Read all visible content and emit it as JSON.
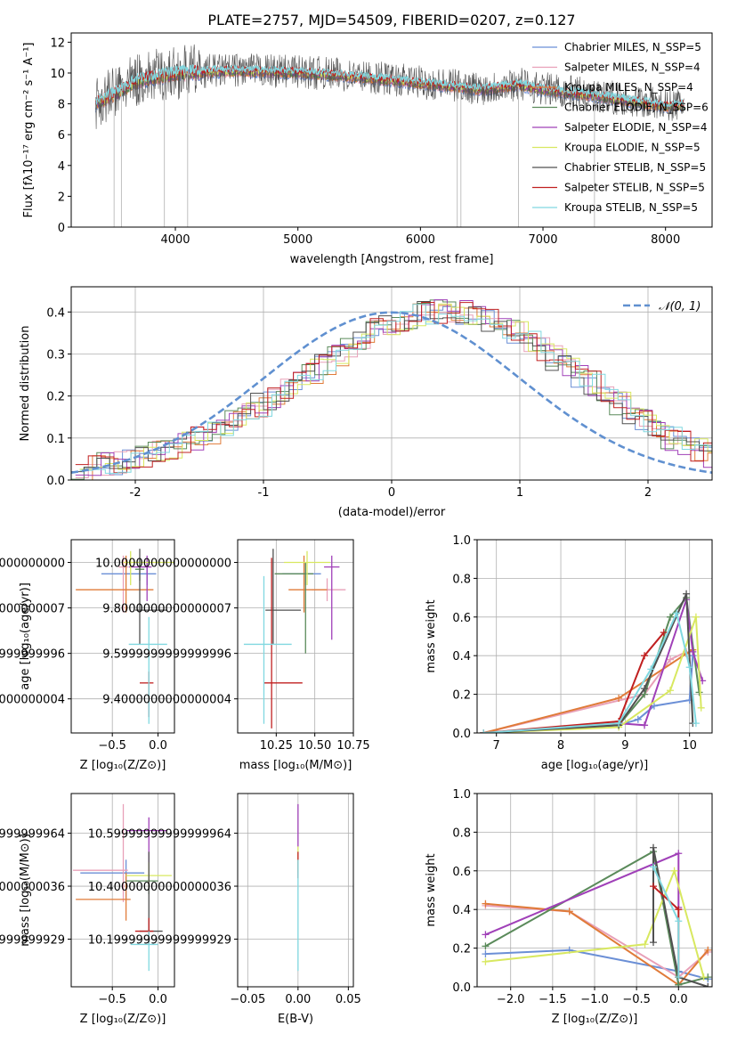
{
  "title": "PLATE=2757, MJD=54509, FIBERID=0207, z=0.127",
  "colors": {
    "Chabrier MILES": "#6b8fd6",
    "Salpeter MILES": "#e8a0b8",
    "Kroupa MILES": "#e07b39",
    "Chabrier ELODIE": "#5a8a5a",
    "Salpeter ELODIE": "#a040b8",
    "Kroupa ELODIE": "#d8e860",
    "Chabrier STELIB": "#505050",
    "Salpeter STELIB": "#c02020",
    "Kroupa STELIB": "#80d8e0",
    "normal": "#6090d0"
  },
  "chart_data": [
    {
      "type": "line",
      "id": "spectrum",
      "xlabel": "wavelength [Angstrom, rest frame]",
      "ylabel": "Flux [fλ10⁻¹⁷ erg cm⁻² s⁻¹ A⁻¹]",
      "xlim": [
        3150,
        8380
      ],
      "ylim": [
        0,
        12.6
      ],
      "xticks": [
        4000,
        5000,
        6000,
        7000,
        8000
      ],
      "yticks": [
        0,
        2,
        4,
        6,
        8,
        10,
        12
      ],
      "legend_position": "top-right",
      "legend": [
        "Chabrier MILES, N_SSP=5",
        "Salpeter MILES, N_SSP=4",
        "Kroupa MILES, N_SSP=4",
        "Chabrier ELODIE, N_SSP=6",
        "Salpeter ELODIE, N_SSP=4",
        "Kroupa ELODIE, N_SSP=5",
        "Chabrier STELIB, N_SSP=5",
        "Salpeter STELIB, N_SSP=5",
        "Kroupa STELIB, N_SSP=5"
      ],
      "series_names": [
        "Chabrier MILES",
        "Salpeter MILES",
        "Kroupa MILES",
        "Chabrier ELODIE",
        "Salpeter ELODIE",
        "Kroupa ELODIE",
        "Chabrier STELIB",
        "Salpeter STELIB",
        "Kroupa STELIB"
      ],
      "continuum_x": [
        3350,
        3500,
        3700,
        3900,
        4100,
        4500,
        5000,
        5500,
        6000,
        6500,
        6800,
        7000,
        7500,
        8000,
        8150
      ],
      "continuum_y": [
        8.0,
        8.6,
        9.5,
        9.8,
        10.0,
        10.1,
        10.0,
        9.7,
        9.3,
        8.9,
        9.2,
        8.9,
        8.4,
        7.8,
        7.9
      ],
      "dips": [
        {
          "x": 3500,
          "y": 0
        },
        {
          "x": 3560,
          "y": 0
        },
        {
          "x": 3910,
          "y": 0
        },
        {
          "x": 4100,
          "y": 0
        },
        {
          "x": 6300,
          "y": 0
        },
        {
          "x": 6330,
          "y": 0
        },
        {
          "x": 6800,
          "y": 0
        },
        {
          "x": 7420,
          "y": 0
        }
      ]
    },
    {
      "type": "histogram",
      "id": "residuals",
      "xlabel": "(data-model)/error",
      "ylabel": "Normed distribution",
      "xlim": [
        -2.5,
        2.5
      ],
      "ylim": [
        0,
        0.46
      ],
      "xticks": [
        -2,
        -1,
        0,
        1,
        2
      ],
      "yticks": [
        0.0,
        0.1,
        0.2,
        0.3,
        0.4
      ],
      "bin_width": 0.1,
      "bin_start": -2.5,
      "reference_values": [
        0.02,
        0.03,
        0.04,
        0.04,
        0.05,
        0.06,
        0.07,
        0.08,
        0.09,
        0.1,
        0.11,
        0.12,
        0.14,
        0.16,
        0.18,
        0.19,
        0.21,
        0.24,
        0.26,
        0.28,
        0.3,
        0.32,
        0.34,
        0.36,
        0.37,
        0.38,
        0.39,
        0.4,
        0.4,
        0.4,
        0.4,
        0.39,
        0.38,
        0.36,
        0.35,
        0.33,
        0.31,
        0.29,
        0.27,
        0.25,
        0.23,
        0.2,
        0.18,
        0.16,
        0.14,
        0.12,
        0.1,
        0.09,
        0.07,
        0.06,
        0.05
      ],
      "legend": "𝒩(0, 1)",
      "legend_position": "top-right",
      "normal_curve": {
        "mean": 0,
        "sigma": 1
      }
    },
    {
      "type": "scatter",
      "id": "age-vs-Z",
      "xlabel": "Z [log₁₀(Z/Z⊙)]",
      "ylabel": "age  [log₁₀(age/yr)]",
      "xlim": [
        -0.95,
        0.18
      ],
      "ylim": [
        9.25,
        10.1
      ],
      "xticks": [
        -0.5,
        0.0
      ],
      "yticks": [
        9.4,
        9.6,
        9.8,
        10.0
      ],
      "points": [
        {
          "series": "Chabrier MILES",
          "x": -0.12,
          "y": 9.95,
          "xerr": [
            0.5,
            0.1
          ],
          "yerr": [
            0.05,
            0.05
          ]
        },
        {
          "series": "Salpeter MILES",
          "x": -0.38,
          "y": 9.98,
          "xerr": [
            0.05,
            0.05
          ],
          "yerr": [
            0.2,
            0.05
          ]
        },
        {
          "series": "Kroupa MILES",
          "x": -0.35,
          "y": 9.88,
          "xerr": [
            0.55,
            0.3
          ],
          "yerr": [
            0.1,
            0.15
          ]
        },
        {
          "series": "Chabrier ELODIE",
          "x": -0.2,
          "y": 9.97,
          "xerr": [
            0.05,
            0.05
          ],
          "yerr": [
            0.05,
            0.05
          ]
        },
        {
          "series": "Salpeter ELODIE",
          "x": -0.12,
          "y": 9.98,
          "xerr": [
            0.2,
            0.05
          ],
          "yerr": [
            0.15,
            0.05
          ]
        },
        {
          "series": "Kroupa ELODIE",
          "x": -0.3,
          "y": 10.0,
          "xerr": [
            0.08,
            0.48
          ],
          "yerr": [
            0.1,
            0.05
          ]
        },
        {
          "series": "Chabrier STELIB",
          "x": -0.2,
          "y": 9.79,
          "xerr": [
            0.05,
            0.3
          ],
          "yerr": [
            0.15,
            0.27
          ]
        },
        {
          "series": "Salpeter STELIB",
          "x": -0.1,
          "y": 9.47,
          "xerr": [
            0.1,
            0.05
          ],
          "yerr": [
            0.15,
            0.05
          ]
        },
        {
          "series": "Kroupa STELIB",
          "x": -0.1,
          "y": 9.64,
          "xerr": [
            0.22,
            0.2
          ],
          "yerr": [
            0.35,
            0.12
          ]
        }
      ]
    },
    {
      "type": "scatter",
      "id": "age-vs-mass",
      "xlabel": "mass [log₁₀(M/M⊙)]",
      "ylabel": "",
      "xlim": [
        10.0,
        10.75
      ],
      "ylim": [
        9.25,
        10.1
      ],
      "xticks": [
        10.25,
        10.5,
        10.75
      ],
      "yticks": [
        9.4,
        9.6,
        9.8,
        10.0
      ],
      "points": [
        {
          "series": "Chabrier MILES",
          "x": 10.44,
          "y": 9.95,
          "xerr": [
            0.15,
            0.1
          ],
          "yerr": [
            0.05,
            0.05
          ]
        },
        {
          "series": "Salpeter MILES",
          "x": 10.58,
          "y": 9.88,
          "xerr": [
            0.1,
            0.12
          ],
          "yerr": [
            0.05,
            0.05
          ]
        },
        {
          "series": "Kroupa MILES",
          "x": 10.43,
          "y": 9.88,
          "xerr": [
            0.1,
            0.15
          ],
          "yerr": [
            0.1,
            0.15
          ]
        },
        {
          "series": "Chabrier ELODIE",
          "x": 10.44,
          "y": 9.95,
          "xerr": [
            0.2,
            0.05
          ],
          "yerr": [
            0.35,
            0.05
          ]
        },
        {
          "series": "Salpeter ELODIE",
          "x": 10.61,
          "y": 9.98,
          "xerr": [
            0.05,
            0.05
          ],
          "yerr": [
            0.32,
            0.05
          ]
        },
        {
          "series": "Kroupa ELODIE",
          "x": 10.45,
          "y": 10.0,
          "xerr": [
            0.15,
            0.15
          ],
          "yerr": [
            0.1,
            0.05
          ]
        },
        {
          "series": "Chabrier STELIB",
          "x": 10.23,
          "y": 9.79,
          "xerr": [
            0.05,
            0.18
          ],
          "yerr": [
            0.15,
            0.27
          ]
        },
        {
          "series": "Salpeter STELIB",
          "x": 10.22,
          "y": 9.47,
          "xerr": [
            0.05,
            0.2
          ],
          "yerr": [
            0.2,
            0.55
          ]
        },
        {
          "series": "Kroupa STELIB",
          "x": 10.17,
          "y": 9.64,
          "xerr": [
            0.13,
            0.18
          ],
          "yerr": [
            0.35,
            0.3
          ]
        }
      ]
    },
    {
      "type": "line",
      "id": "mass-weight-vs-age",
      "xlabel": "age  [log₁₀(age/yr)]",
      "ylabel": "mass weight",
      "xlim": [
        6.7,
        10.35
      ],
      "ylim": [
        0,
        1
      ],
      "xticks": [
        7,
        8,
        9,
        10
      ],
      "yticks": [
        0.0,
        0.2,
        0.4,
        0.6,
        0.8,
        1.0
      ],
      "series": [
        {
          "name": "Chabrier MILES",
          "x": [
            6.8,
            8.9,
            9.2,
            9.45,
            10.0,
            10.05
          ],
          "y": [
            0.0,
            0.04,
            0.07,
            0.14,
            0.17,
            0.4
          ]
        },
        {
          "name": "Salpeter MILES",
          "x": [
            6.8,
            9.3,
            9.7,
            9.95
          ],
          "y": [
            0.0,
            0.2,
            0.38,
            0.42
          ]
        },
        {
          "name": "Kroupa MILES",
          "x": [
            6.8,
            8.9,
            9.95,
            10.05
          ],
          "y": [
            0.0,
            0.18,
            0.41,
            0.43
          ]
        },
        {
          "name": "Chabrier ELODIE",
          "x": [
            6.8,
            8.9,
            9.3,
            9.7,
            9.95,
            10.15
          ],
          "y": [
            0.0,
            0.04,
            0.2,
            0.6,
            0.7,
            0.21
          ]
        },
        {
          "name": "Salpeter ELODIE",
          "x": [
            6.8,
            8.9,
            9.3,
            9.95,
            10.05,
            10.2
          ],
          "y": [
            0.0,
            0.05,
            0.04,
            0.69,
            0.42,
            0.27
          ]
        },
        {
          "name": "Kroupa ELODIE",
          "x": [
            6.8,
            8.9,
            9.7,
            10.1,
            10.18
          ],
          "y": [
            0.0,
            0.03,
            0.22,
            0.6,
            0.13
          ]
        },
        {
          "name": "Chabrier STELIB",
          "x": [
            6.8,
            8.9,
            9.3,
            9.95,
            10.05
          ],
          "y": [
            0.0,
            0.04,
            0.23,
            0.72,
            0.05
          ]
        },
        {
          "name": "Salpeter STELIB",
          "x": [
            6.8,
            8.9,
            9.3,
            9.6
          ],
          "y": [
            0.0,
            0.06,
            0.4,
            0.52
          ]
        },
        {
          "name": "Kroupa STELIB",
          "x": [
            6.8,
            8.9,
            9.4,
            9.8,
            10.0,
            10.1
          ],
          "y": [
            0.0,
            0.05,
            0.33,
            0.62,
            0.34,
            0.05
          ]
        }
      ]
    },
    {
      "type": "scatter",
      "id": "mass-vs-Z",
      "xlabel": "Z [log₁₀(Z/Z⊙)]",
      "ylabel": "mass [log₁₀(M/M⊙)]",
      "xlim": [
        -0.95,
        0.18
      ],
      "ylim": [
        10.02,
        10.75
      ],
      "xticks": [
        -0.5,
        0.0
      ],
      "yticks": [
        10.2,
        10.4,
        10.6
      ],
      "points": [
        {
          "series": "Chabrier MILES",
          "x": -0.35,
          "y": 10.45,
          "xerr": [
            0.5,
            0.2
          ],
          "yerr": [
            0.1,
            0.05
          ]
        },
        {
          "series": "Salpeter MILES",
          "x": -0.38,
          "y": 10.46,
          "xerr": [
            0.55,
            0.05
          ],
          "yerr": [
            0.12,
            0.25
          ]
        },
        {
          "series": "Kroupa MILES",
          "x": -0.35,
          "y": 10.35,
          "xerr": [
            0.55,
            0.05
          ],
          "yerr": [
            0.08,
            0.1
          ]
        },
        {
          "series": "Chabrier ELODIE",
          "x": -0.1,
          "y": 10.42,
          "xerr": [
            0.25,
            0.1
          ],
          "yerr": [
            0.05,
            0.05
          ]
        },
        {
          "series": "Salpeter ELODIE",
          "x": -0.1,
          "y": 10.61,
          "xerr": [
            0.25,
            0.2
          ],
          "yerr": [
            0.2,
            0.05
          ]
        },
        {
          "series": "Kroupa ELODIE",
          "x": -0.1,
          "y": 10.44,
          "xerr": [
            0.25,
            0.25
          ],
          "yerr": [
            0.05,
            0.05
          ]
        },
        {
          "series": "Chabrier STELIB",
          "x": -0.1,
          "y": 10.23,
          "xerr": [
            0.1,
            0.15
          ],
          "yerr": [
            0.05,
            0.3
          ]
        },
        {
          "series": "Salpeter STELIB",
          "x": -0.1,
          "y": 10.23,
          "xerr": [
            0.15,
            0.05
          ],
          "yerr": [
            0.05,
            0.05
          ]
        },
        {
          "series": "Kroupa STELIB",
          "x": -0.1,
          "y": 10.18,
          "xerr": [
            0.2,
            0.1
          ],
          "yerr": [
            0.1,
            0.05
          ]
        }
      ]
    },
    {
      "type": "scatter",
      "id": "mass-vs-ebv",
      "xlabel": "E(B-V)",
      "ylabel": "",
      "xlim": [
        -0.06,
        0.055
      ],
      "ylim": [
        10.02,
        10.75
      ],
      "xticks": [
        -0.05,
        0.0,
        0.05
      ],
      "yticks": [
        10.2,
        10.4,
        10.6
      ],
      "points": [
        {
          "series": "Salpeter ELODIE",
          "x": 0.0,
          "y": 10.63,
          "xerr": [
            0,
            0
          ],
          "yerr": [
            0.08,
            0.08
          ]
        },
        {
          "series": "Kroupa ELODIE",
          "x": 0.0,
          "y": 10.5,
          "xerr": [
            0,
            0
          ],
          "yerr": [
            0.05,
            0.05
          ]
        },
        {
          "series": "Salpeter STELIB",
          "x": 0.0,
          "y": 10.48,
          "xerr": [
            0,
            0
          ],
          "yerr": [
            0.05,
            0.05
          ]
        },
        {
          "series": "Kroupa STELIB",
          "x": 0.0,
          "y": 10.3,
          "xerr": [
            0,
            0
          ],
          "yerr": [
            0.22,
            0.2
          ]
        }
      ]
    },
    {
      "type": "line",
      "id": "mass-weight-vs-Z",
      "xlabel": "Z [log₁₀(Z/Z⊙)]",
      "ylabel": "mass weight",
      "xlim": [
        -2.4,
        0.4
      ],
      "ylim": [
        0,
        1
      ],
      "xticks": [
        -2.0,
        -1.5,
        -1.0,
        -0.5,
        0.0
      ],
      "yticks": [
        0.0,
        0.2,
        0.4,
        0.6,
        0.8,
        1.0
      ],
      "series": [
        {
          "name": "Chabrier MILES",
          "x": [
            -2.3,
            -1.3,
            0.0,
            0.35
          ],
          "y": [
            0.17,
            0.19,
            0.08,
            0.04
          ]
        },
        {
          "name": "Salpeter MILES",
          "x": [
            -2.3,
            -1.3,
            0.0,
            0.35
          ],
          "y": [
            0.42,
            0.39,
            0.05,
            0.18
          ]
        },
        {
          "name": "Kroupa MILES",
          "x": [
            -2.3,
            -1.3,
            -0.0,
            0.35
          ],
          "y": [
            0.43,
            0.39,
            0.01,
            0.19
          ]
        },
        {
          "name": "Chabrier ELODIE",
          "x": [
            -2.3,
            -0.3,
            0.0,
            0.35
          ],
          "y": [
            0.21,
            0.7,
            0.01,
            0.05
          ]
        },
        {
          "name": "Salpeter ELODIE",
          "x": [
            -2.3,
            0.0,
            0.0
          ],
          "y": [
            0.27,
            0.69,
            0.41
          ]
        },
        {
          "name": "Kroupa ELODIE",
          "x": [
            -2.3,
            -0.4,
            -0.05,
            0.3
          ],
          "y": [
            0.13,
            0.22,
            0.6,
            0.05
          ]
        },
        {
          "name": "Chabrier STELIB",
          "x": [
            -0.3,
            -0.3,
            0.0,
            0.35
          ],
          "y": [
            0.23,
            0.72,
            0.05,
            0.0
          ]
        },
        {
          "name": "Salpeter STELIB",
          "x": [
            -0.3,
            0.0,
            0.0
          ],
          "y": [
            0.52,
            0.4,
            0.05
          ]
        },
        {
          "name": "Kroupa STELIB",
          "x": [
            -0.3,
            0.0,
            0.0
          ],
          "y": [
            0.62,
            0.34,
            0.05
          ]
        }
      ]
    }
  ]
}
